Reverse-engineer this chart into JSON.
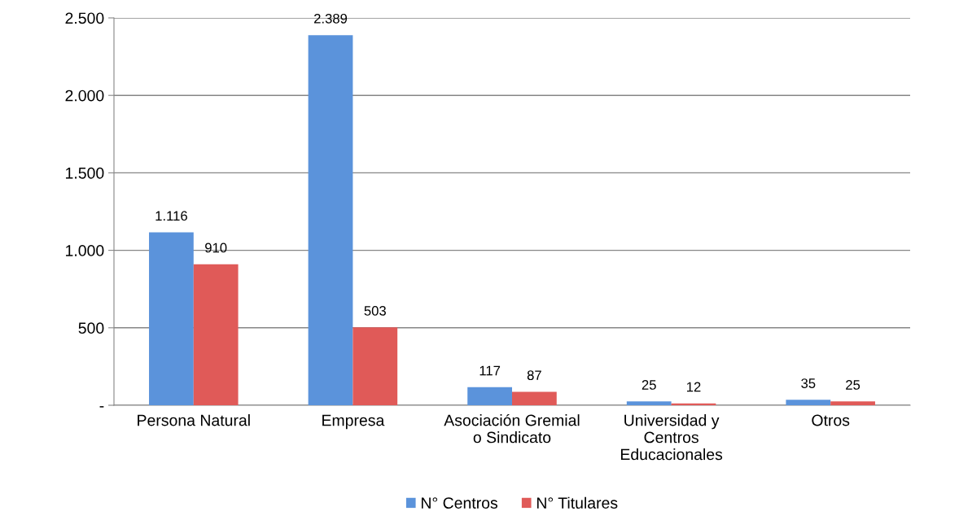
{
  "chart_data": {
    "type": "bar",
    "categories": [
      "Persona Natural",
      "Empresa",
      "Asociación Gremial\no Sindicato",
      "Universidad y\nCentros\nEducacionales",
      "Otros"
    ],
    "series": [
      {
        "name": "N° Centros",
        "color": "#5b93db",
        "values": [
          1116,
          2389,
          117,
          25,
          35
        ],
        "value_labels": [
          "1.116",
          "2.389",
          "117",
          "25",
          "35"
        ]
      },
      {
        "name": "N° Titulares",
        "color": "#e05a58",
        "values": [
          910,
          503,
          87,
          12,
          25
        ],
        "value_labels": [
          "910",
          "503",
          "87",
          "12",
          "25"
        ]
      }
    ],
    "ylim": [
      0,
      2500
    ],
    "yticks": [
      {
        "value": 0,
        "label": "-"
      },
      {
        "value": 500,
        "label": "500"
      },
      {
        "value": 1000,
        "label": "1.000"
      },
      {
        "value": 1500,
        "label": "1.500"
      },
      {
        "value": 2000,
        "label": "2.000"
      },
      {
        "value": 2500,
        "label": "2.500"
      }
    ],
    "grid": "y",
    "legend": "bottom"
  }
}
